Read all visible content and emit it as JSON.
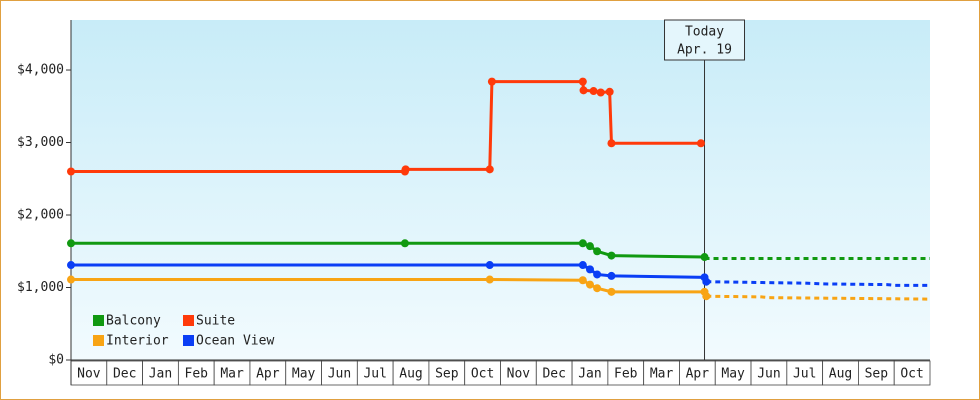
{
  "chart_data": {
    "type": "line",
    "categories": [
      "Nov",
      "Dec",
      "Jan",
      "Feb",
      "Mar",
      "Apr",
      "May",
      "Jun",
      "Jul",
      "Aug",
      "Sep",
      "Oct",
      "Nov",
      "Dec",
      "Jan",
      "Feb",
      "Mar",
      "Apr",
      "May",
      "Jun",
      "Jul",
      "Aug",
      "Sep",
      "Oct"
    ],
    "xlim": [
      0,
      24
    ],
    "ylim": [
      0,
      4690
    ],
    "yticks": [
      {
        "value": 0,
        "label": "$0"
      },
      {
        "value": 1000,
        "label": "$1,000"
      },
      {
        "value": 2000,
        "label": "$2,000"
      },
      {
        "value": 3000,
        "label": "$3,000"
      },
      {
        "value": 4000,
        "label": "$4,000"
      }
    ],
    "today": {
      "x": 17.7,
      "label": "Today",
      "date": "Apr. 19"
    },
    "legend": "lower left",
    "series": [
      {
        "name": "Balcony",
        "color": "#119911",
        "x": [
          0,
          9.33,
          14.3,
          14.5,
          14.7,
          15.1,
          17.7
        ],
        "values": [
          1610,
          1610,
          1610,
          1570,
          1500,
          1440,
          1420
        ],
        "forecast_x": [
          17.7,
          24
        ],
        "forecast_values": [
          1400,
          1400
        ]
      },
      {
        "name": "Suite",
        "color": "#ff3a0a",
        "x": [
          0,
          9.33,
          9.35,
          11.7,
          11.76,
          14.3,
          14.32,
          14.6,
          14.8,
          15.05,
          15.1,
          17.6
        ],
        "values": [
          2600,
          2600,
          2630,
          2630,
          3840,
          3840,
          3720,
          3710,
          3690,
          3700,
          2990,
          2990
        ],
        "forecast_x": [],
        "forecast_values": []
      },
      {
        "name": "Interior",
        "color": "#f8a414",
        "x": [
          0,
          11.7,
          14.3,
          14.5,
          14.7,
          15.1,
          17.7,
          17.75
        ],
        "values": [
          1110,
          1110,
          1100,
          1040,
          990,
          940,
          940,
          880
        ],
        "forecast_x": [
          17.75,
          19.3,
          19.5,
          24
        ],
        "forecast_values": [
          880,
          870,
          860,
          840
        ]
      },
      {
        "name": "Ocean View",
        "color": "#0a3ef5",
        "x": [
          0,
          11.7,
          14.3,
          14.5,
          14.7,
          15.1,
          17.7,
          17.75
        ],
        "values": [
          1310,
          1310,
          1310,
          1250,
          1180,
          1160,
          1140,
          1080
        ],
        "forecast_x": [
          17.75,
          20.5,
          21,
          22.8,
          23,
          24
        ],
        "forecast_values": [
          1080,
          1060,
          1050,
          1040,
          1030,
          1030
        ]
      }
    ]
  }
}
